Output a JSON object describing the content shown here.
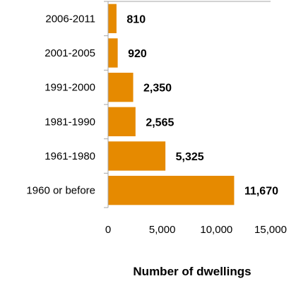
{
  "chart_data": {
    "type": "bar",
    "orientation": "horizontal",
    "categories": [
      "2006-2011",
      "2001-2005",
      "1991-2000",
      "1981-1990",
      "1961-1980",
      "1960 or before"
    ],
    "values": [
      810,
      920,
      2350,
      2565,
      5325,
      11670
    ],
    "data_labels": [
      "810",
      "920",
      "2,350",
      "2,565",
      "5,325",
      "11,670"
    ],
    "xlabel": "Number of dwellings",
    "xlim": [
      0,
      15000
    ],
    "xticks": [
      0,
      5000,
      10000,
      15000
    ],
    "xtick_labels": [
      "0",
      "5,000",
      "10,000",
      "15,000"
    ],
    "grid": false,
    "colors": {
      "bar": "#E68A00",
      "bar_edge": "#FFFFFF",
      "axis": "#A6A6A6"
    }
  }
}
